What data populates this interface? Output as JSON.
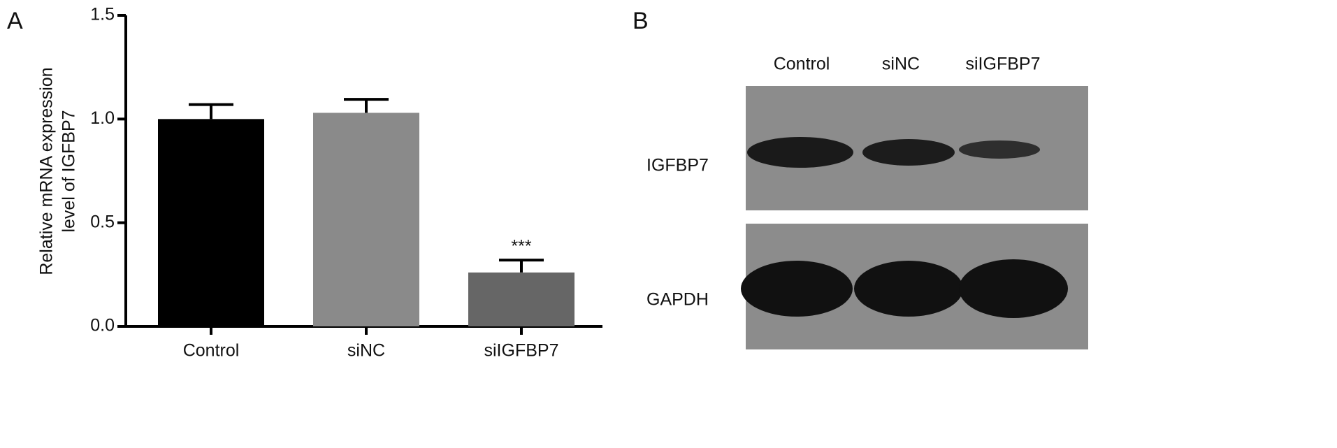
{
  "panel_labels": [
    "A",
    "B"
  ],
  "chart_data": {
    "type": "bar",
    "y_label_lines": [
      "Relative mRNA expression",
      "level of IGFBP7"
    ],
    "categories": [
      "Control",
      "siNC",
      "siIGFBP7"
    ],
    "values": [
      1.0,
      1.03,
      0.26
    ],
    "errors": [
      0.07,
      0.065,
      0.06
    ],
    "colors": [
      "#000000",
      "#8a8a8a",
      "#666666"
    ],
    "annotations": [
      null,
      null,
      "***"
    ],
    "ylim": [
      0,
      1.5
    ],
    "yticks": [
      {
        "value": 0,
        "label": "0.0"
      },
      {
        "value": 0.5,
        "label": "0.5"
      },
      {
        "value": 1,
        "label": "1.0"
      },
      {
        "value": 1.5,
        "label": "1.5"
      }
    ]
  },
  "blot": {
    "columns": [
      "Control",
      "siNC",
      "siIGFBP7"
    ],
    "rows": [
      "IGFBP7",
      "GAPDH"
    ]
  }
}
